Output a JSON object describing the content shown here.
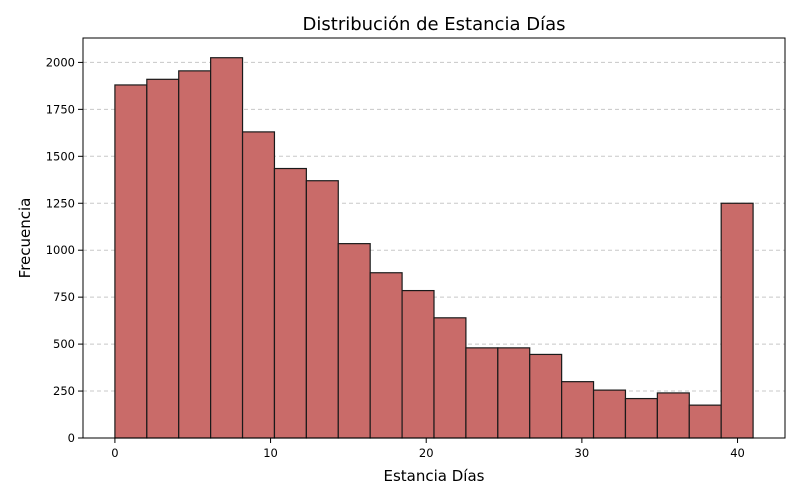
{
  "chart_data": {
    "type": "bar",
    "title": "Distribución de Estancia Días",
    "xlabel": "Estancia Días",
    "ylabel": "Frecuencia",
    "bin_edges": [
      0,
      2.05,
      4.1,
      6.15,
      8.2,
      10.25,
      12.3,
      14.35,
      16.4,
      18.45,
      20.5,
      22.55,
      24.6,
      26.65,
      28.7,
      30.75,
      32.8,
      34.85,
      36.9,
      38.95,
      41
    ],
    "values": [
      1880,
      1910,
      1955,
      2025,
      1630,
      1435,
      1370,
      1035,
      880,
      785,
      640,
      480,
      480,
      445,
      300,
      255,
      210,
      240,
      175,
      1250
    ],
    "xlim": [
      -2.05,
      43.05
    ],
    "ylim": [
      0,
      2130
    ],
    "xticks": [
      0,
      10,
      20,
      30,
      40
    ],
    "yticks": [
      0,
      250,
      500,
      750,
      1000,
      1250,
      1500,
      1750,
      2000
    ],
    "grid": "y-dashed",
    "colors": {
      "bar_fill": "#c96b69",
      "bar_edge": "#1a1a1a",
      "grid": "#c8c8c8"
    }
  }
}
